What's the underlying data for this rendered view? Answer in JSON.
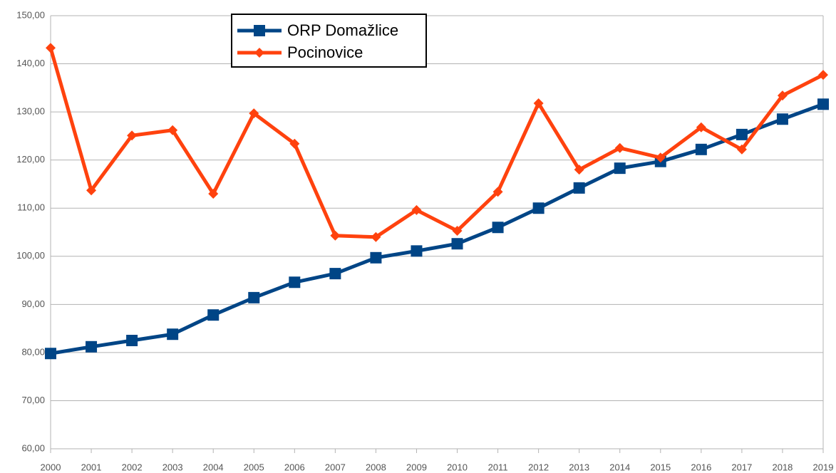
{
  "chart_data": {
    "type": "line",
    "categories": [
      "2000",
      "2001",
      "2002",
      "2003",
      "2004",
      "2005",
      "2006",
      "2007",
      "2008",
      "2009",
      "2010",
      "2011",
      "2012",
      "2013",
      "2014",
      "2015",
      "2016",
      "2017",
      "2018",
      "2019"
    ],
    "series": [
      {
        "name": "ORP Domažlice",
        "color": "#004586",
        "marker": "square",
        "values": [
          79.8,
          81.2,
          82.5,
          83.8,
          87.8,
          91.4,
          94.6,
          96.4,
          99.7,
          101.1,
          102.6,
          106.0,
          110.0,
          114.2,
          118.3,
          119.7,
          122.2,
          125.3,
          128.5,
          131.6
        ]
      },
      {
        "name": "Pocinovice",
        "color": "#ff420e",
        "marker": "diamond",
        "values": [
          143.3,
          113.7,
          125.1,
          126.2,
          113.0,
          129.7,
          123.4,
          104.3,
          104.0,
          109.6,
          105.3,
          113.4,
          131.8,
          118.0,
          122.5,
          120.5,
          126.8,
          122.2,
          133.4,
          137.7
        ]
      }
    ],
    "ylim": [
      60,
      150
    ],
    "yticks": [
      {
        "value": 60,
        "label": "60,00"
      },
      {
        "value": 70,
        "label": "70,00"
      },
      {
        "value": 80,
        "label": "80,00"
      },
      {
        "value": 90,
        "label": "90,00"
      },
      {
        "value": 100,
        "label": "100,00"
      },
      {
        "value": 110,
        "label": "110,00"
      },
      {
        "value": 120,
        "label": "120,00"
      },
      {
        "value": 130,
        "label": "130,00"
      },
      {
        "value": 140,
        "label": "140,00"
      },
      {
        "value": 150,
        "label": "150,00"
      }
    ],
    "grid": true,
    "legend": "top-left"
  }
}
